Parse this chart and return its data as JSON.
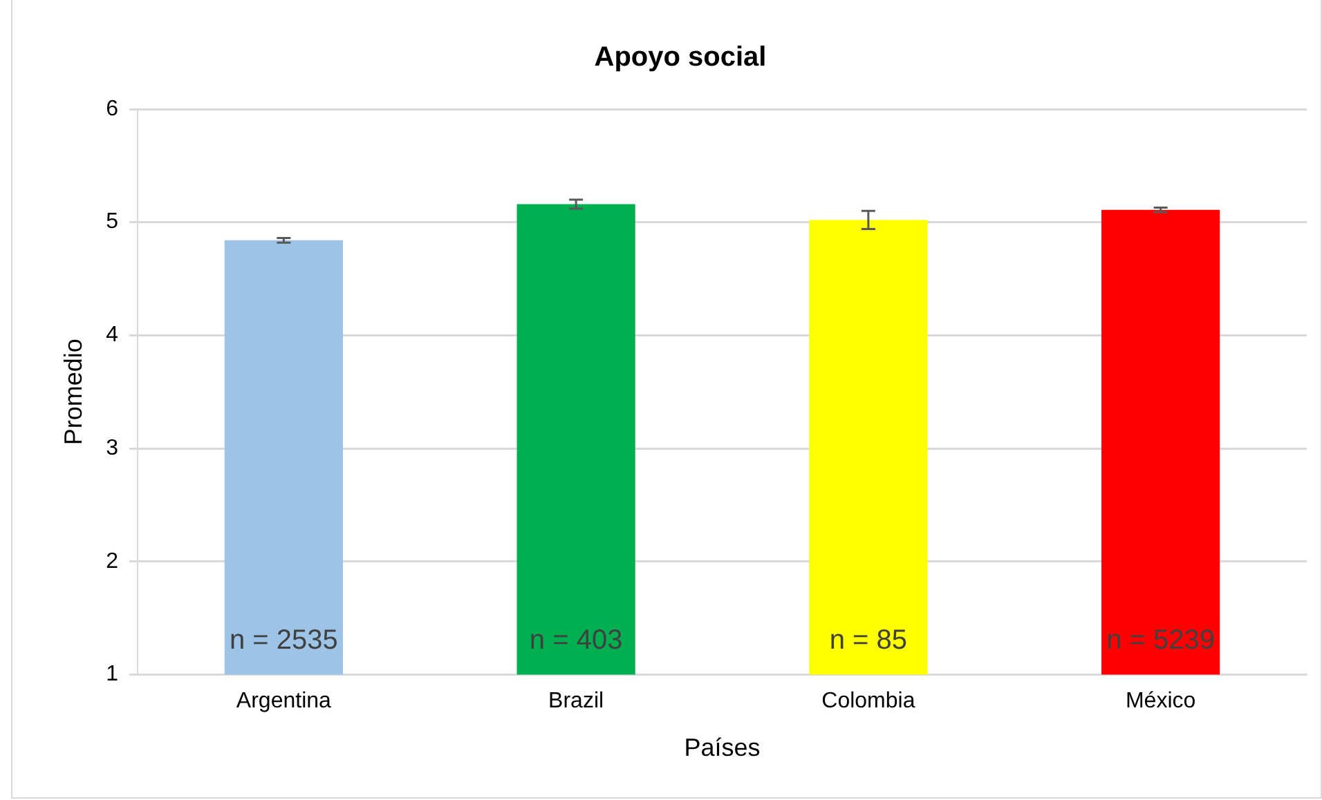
{
  "chart_data": {
    "type": "bar",
    "title": "Apoyo social",
    "xlabel": "Países",
    "ylabel": "Promedio",
    "categories": [
      "Argentina",
      "Brazil",
      "Colombia",
      "México"
    ],
    "values": [
      4.84,
      5.16,
      5.02,
      5.11
    ],
    "errors": [
      0.02,
      0.04,
      0.08,
      0.02
    ],
    "colors": [
      "#9dc3e6",
      "#00b050",
      "#ffff00",
      "#ff0000"
    ],
    "ylim": [
      1,
      6
    ],
    "yticks": [
      1,
      2,
      3,
      4,
      5,
      6
    ],
    "grid": "y",
    "legend": false,
    "annotations": [
      "n = 2535",
      "n = 403",
      "n = 85",
      "n = 5239"
    ]
  }
}
